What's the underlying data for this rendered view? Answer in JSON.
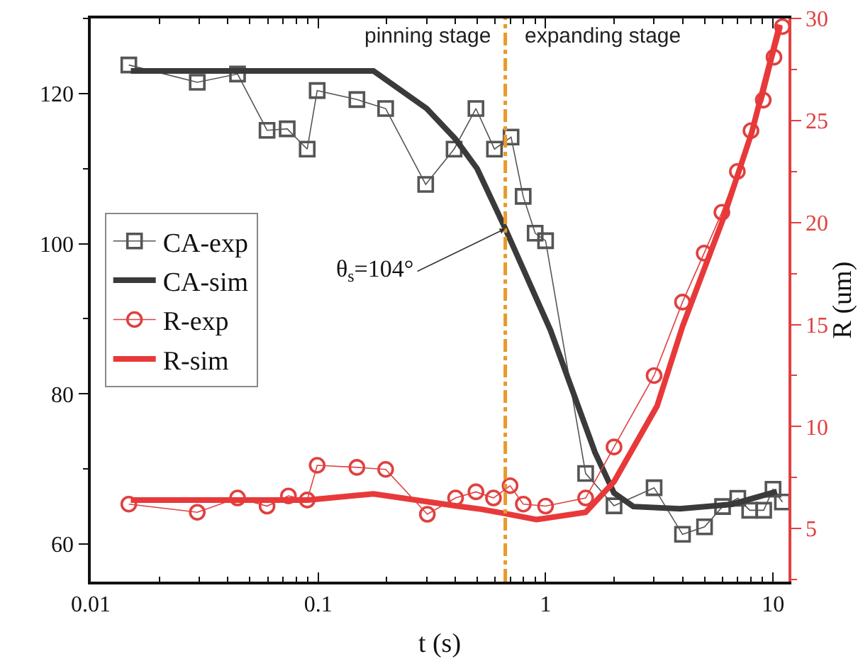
{
  "chart_data": {
    "type": "line",
    "xlabel": "t (s)",
    "y2label": "R (um)",
    "log": "x",
    "grid": false,
    "legend": "left",
    "xlim": [
      0.01,
      11.7
    ],
    "xticks": [
      0.01,
      0.1,
      1,
      10
    ],
    "ylim": [
      55,
      130
    ],
    "yticks": [
      60,
      80,
      100,
      120
    ],
    "y2lim": [
      2.4,
      30
    ],
    "y2ticks": [
      5,
      10,
      15,
      20,
      25,
      30
    ],
    "ref_lines": [
      {
        "axis": "x",
        "value": 0.665,
        "color": "#e89a2a",
        "line_style": "dashdot"
      }
    ],
    "annotations": [
      "pinning stage",
      "expanding stage",
      {
        "text": "θ$_{s}$=104°",
        "x": 0.665,
        "y": 102
      }
    ],
    "series": [
      {
        "name": "CA-exp",
        "color": "#555555",
        "marker": "square",
        "x": [
          0.0147,
          0.0294,
          0.0442,
          0.0596,
          0.0731,
          0.0895,
          0.099,
          0.148,
          0.198,
          0.297,
          0.396,
          0.494,
          0.596,
          0.705,
          0.797,
          0.9,
          1.0,
          1.5,
          2.0,
          3.0,
          4.0,
          5.0,
          6.0,
          7.0,
          7.9,
          9.1,
          10,
          11.0
        ],
        "values": [
          123.8,
          121.5,
          122.6,
          115.1,
          115.3,
          112.6,
          120.4,
          119.2,
          118,
          107.9,
          112.6,
          118,
          112.6,
          114.2,
          106.3,
          101.4,
          100.4,
          69.4,
          65.1,
          67.5,
          61.3,
          62.3,
          65.0,
          66.1,
          64.5,
          64.5,
          67.3,
          65.6
        ]
      },
      {
        "name": "CA-sim",
        "color": "#3a3a3a",
        "marker": "none",
        "x": [
          0.015,
          0.175,
          0.3,
          0.4,
          0.5,
          0.665,
          1.05,
          1.65,
          2.0,
          2.43,
          3.9,
          6.6,
          10.4
        ],
        "values": [
          123,
          123,
          118,
          114,
          110,
          102,
          88.5,
          72.2,
          66.8,
          65.0,
          64.7,
          65.3,
          67
        ]
      },
      {
        "name": "R-exp",
        "axis": "y2",
        "color": "#e04040",
        "marker": "circle",
        "x": [
          0.0147,
          0.0294,
          0.0442,
          0.0596,
          0.074,
          0.0895,
          0.099,
          0.148,
          0.198,
          0.302,
          0.402,
          0.494,
          0.59,
          0.698,
          0.798,
          1.0,
          1.5,
          2.0,
          3.0,
          4.0,
          4.98,
          5.96,
          6.97,
          8.0,
          9.06,
          10.1,
          11.0
        ],
        "values": [
          6.2,
          5.8,
          6.5,
          6.1,
          6.6,
          6.4,
          8.1,
          8.0,
          7.9,
          5.7,
          6.5,
          6.8,
          6.5,
          7.1,
          6.2,
          6.1,
          6.5,
          9.0,
          12.5,
          16.1,
          18.5,
          20.5,
          22.5,
          24.5,
          26.0,
          28.1,
          29.6
        ]
      },
      {
        "name": "R-sim",
        "axis": "y2",
        "color": "#e8393a",
        "marker": "none",
        "x": [
          0.015,
          0.09,
          0.175,
          0.41,
          0.52,
          0.66,
          0.91,
          1.5,
          2.0,
          3.09,
          4.0,
          6.0,
          8.06,
          10.7
        ],
        "values": [
          6.4,
          6.4,
          6.7,
          6.1,
          5.95,
          5.74,
          5.44,
          5.8,
          7.3,
          11.0,
          14.9,
          20.1,
          24.4,
          29.7
        ]
      }
    ]
  }
}
